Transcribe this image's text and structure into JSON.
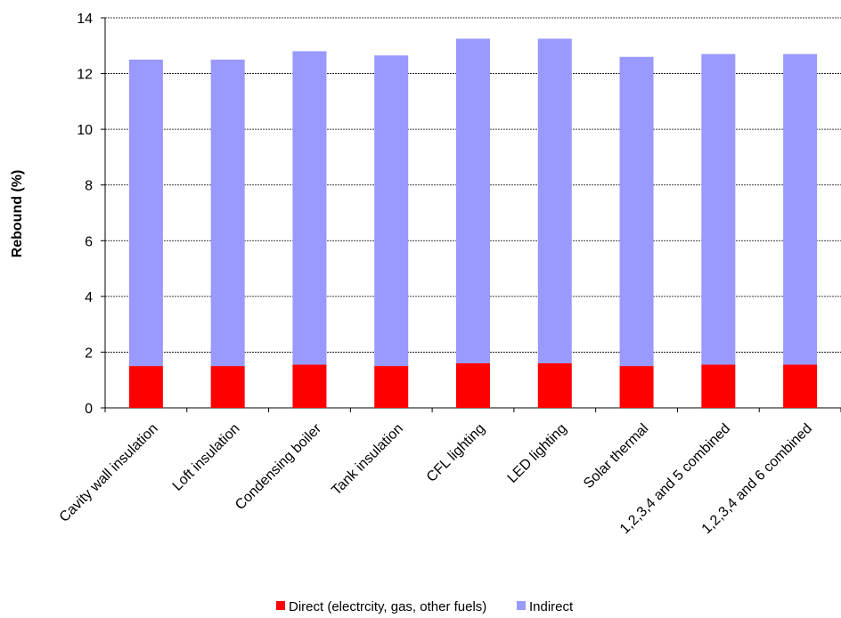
{
  "chart_data": {
    "type": "stacked-bar",
    "y_label": "Rebound (%)",
    "categories": [
      "Cavity wall insulation",
      "Loft insulation",
      "Condensing boiler",
      "Tank insulation",
      "CFL lighting",
      "LED lighting",
      "Solar thermal",
      "1,2,3,4 and 5 combined",
      "1,2,3,4 and 6 combined"
    ],
    "series": [
      {
        "name": "Direct (electrcity, gas, other fuels)",
        "color": "#ff0000",
        "values": [
          1.5,
          1.5,
          1.55,
          1.5,
          1.6,
          1.6,
          1.5,
          1.55,
          1.55
        ]
      },
      {
        "name": "Indirect",
        "color": "#9999ff",
        "values": [
          11.0,
          11.0,
          11.25,
          11.15,
          11.65,
          11.65,
          11.1,
          11.15,
          11.15
        ]
      }
    ],
    "ylim": [
      0,
      14
    ],
    "yticks": [
      0,
      2,
      4,
      6,
      8,
      10,
      12,
      14
    ],
    "grid": true
  }
}
